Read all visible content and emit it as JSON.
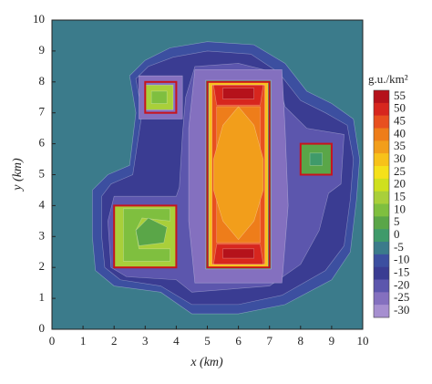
{
  "chart_data": {
    "type": "contour",
    "x_label": "x (km)",
    "y_label": "y (km)",
    "colorbar_title": "g.u./km²",
    "xlim": [
      0,
      10
    ],
    "ylim": [
      0,
      10
    ],
    "xticks": [
      0,
      1,
      2,
      3,
      4,
      5,
      6,
      7,
      8,
      9,
      10
    ],
    "yticks": [
      0,
      1,
      2,
      3,
      4,
      5,
      6,
      7,
      8,
      9,
      10
    ],
    "background_level": -5,
    "levels": [
      55,
      50,
      45,
      40,
      35,
      30,
      25,
      20,
      15,
      10,
      5,
      0,
      -5,
      -10,
      -15,
      -20,
      -25,
      -30
    ],
    "colors": [
      "#b5121b",
      "#d7261e",
      "#e8501f",
      "#ee7d1a",
      "#f29e1b",
      "#f7c21a",
      "#f5e11a",
      "#cfe01e",
      "#a9cf3a",
      "#7fbf3f",
      "#5aa648",
      "#3f9a6a",
      "#3b7b8b",
      "#3c4fa0",
      "#3a3c92",
      "#5c56ad",
      "#8470bf",
      "#a68fd0"
    ],
    "box_color": "#c8141c",
    "contours": [
      {
        "level": -10,
        "x": [
          4.5,
          6,
          7.5,
          9,
          9.6,
          9.8,
          9.9,
          9.7,
          9,
          8.2,
          7.5,
          6.5,
          5,
          3.8,
          3,
          2.5,
          2.7,
          2.5,
          1.8,
          1.3,
          1.3,
          1.4,
          2,
          3.5
        ],
        "y": [
          0.5,
          0.5,
          0.8,
          1.6,
          2.5,
          4.2,
          5.5,
          6.8,
          7.3,
          7.7,
          8.6,
          9.2,
          9.3,
          9.1,
          8.7,
          8.2,
          7,
          5.3,
          5,
          4.5,
          3,
          1.9,
          1.4,
          1.2
        ]
      },
      {
        "level": -15,
        "x": [
          4.5,
          6,
          7.4,
          8.8,
          9.4,
          9.6,
          9.7,
          9.5,
          8.8,
          8,
          7.3,
          6.4,
          5,
          3.9,
          3.1,
          2.7,
          2.9,
          2.6,
          1.9,
          1.6,
          1.6,
          1.7,
          2.2,
          3.5
        ],
        "y": [
          0.8,
          0.8,
          1.1,
          1.9,
          2.7,
          4.2,
          5.5,
          6.6,
          7,
          7.4,
          8.3,
          8.9,
          9,
          8.8,
          8.5,
          8.1,
          7,
          5,
          4.7,
          4.3,
          3,
          2,
          1.6,
          1.4
        ]
      },
      {
        "level": -20,
        "x": [
          4.5,
          7,
          8,
          8.6,
          8.9,
          9.3,
          9.4,
          8.2,
          7.5,
          7.2,
          6,
          4.6,
          4.3,
          4.2,
          4.1,
          4,
          2,
          1.8,
          1.9,
          2.4,
          4
        ],
        "y": [
          1.2,
          1.4,
          2.1,
          3.2,
          4.4,
          4.7,
          6.3,
          6.5,
          7.2,
          8.3,
          8.6,
          8.5,
          7.5,
          6.3,
          4.6,
          4.3,
          4.3,
          3.5,
          2,
          1.7,
          1.6
        ]
      },
      {
        "level": -25,
        "x": [
          4.6,
          7.4,
          7.6,
          7.5,
          7.4,
          4.6,
          4.4,
          4.4
        ],
        "y": [
          1.5,
          1.5,
          4,
          6.5,
          8.4,
          8.4,
          6.5,
          3.5
        ]
      },
      {
        "level": -25,
        "x": [
          2.8,
          4.2,
          4.2,
          2.8
        ],
        "y": [
          6.8,
          6.8,
          8.2,
          8.2
        ]
      },
      {
        "level": 0,
        "x": [
          4.95,
          7.05,
          7.05,
          4.95
        ],
        "y": [
          1.95,
          1.95,
          8.05,
          8.05
        ]
      },
      {
        "level": 30,
        "x": [
          5.05,
          6.95,
          6.95,
          5.05
        ],
        "y": [
          2,
          2,
          8,
          8
        ]
      },
      {
        "level": 45,
        "x": [
          5.15,
          6.85,
          6.85,
          5.15
        ],
        "y": [
          2.1,
          2.1,
          7.9,
          7.9
        ]
      },
      {
        "level": 40,
        "x": [
          5.3,
          6.7,
          6.7,
          5.3
        ],
        "y": [
          2.8,
          2.8,
          7.2,
          7.2
        ]
      },
      {
        "level": 35,
        "x": [
          6,
          6.5,
          6.8,
          6.8,
          6.5,
          6,
          5.5,
          5.2,
          5.2,
          5.5
        ],
        "y": [
          2.9,
          3.5,
          4.5,
          5.5,
          6.6,
          7.2,
          6.6,
          5.5,
          4.5,
          3.5
        ]
      },
      {
        "level": 50,
        "x": [
          5.3,
          6.7,
          6.8,
          5.2
        ],
        "y": [
          7.25,
          7.25,
          7.9,
          7.9
        ]
      },
      {
        "level": 55,
        "x": [
          5.5,
          6.5,
          6.5,
          5.5
        ],
        "y": [
          7.45,
          7.45,
          7.8,
          7.8
        ]
      },
      {
        "level": 50,
        "x": [
          5.2,
          6.8,
          6.7,
          5.3
        ],
        "y": [
          2.1,
          2.1,
          2.75,
          2.75
        ]
      },
      {
        "level": 55,
        "x": [
          5.5,
          6.5,
          6.5,
          5.5
        ],
        "y": [
          2.3,
          2.3,
          2.6,
          2.6
        ]
      },
      {
        "level": 15,
        "x": [
          2,
          4,
          4,
          2
        ],
        "y": [
          2,
          2,
          4,
          4
        ]
      },
      {
        "level": 10,
        "x": [
          2.3,
          3.8,
          3.8,
          2.8,
          2.7,
          2.9,
          3.8,
          3.8,
          2.3
        ],
        "y": [
          2.2,
          2.2,
          2.6,
          2.6,
          3.2,
          3.6,
          3.5,
          3.9,
          3.9
        ]
      },
      {
        "level": 5,
        "x": [
          2.8,
          3.6,
          3.7,
          3.1,
          2.7
        ],
        "y": [
          2.7,
          2.8,
          3.3,
          3.6,
          3.2
        ]
      },
      {
        "level": 15,
        "x": [
          3,
          3.9,
          3.9,
          3
        ],
        "y": [
          7.1,
          7.1,
          7.9,
          7.9
        ]
      },
      {
        "level": 10,
        "x": [
          3.2,
          3.7,
          3.7,
          3.2
        ],
        "y": [
          7.3,
          7.3,
          7.7,
          7.7
        ]
      },
      {
        "level": 5,
        "x": [
          8,
          9,
          9,
          8
        ],
        "y": [
          5,
          5,
          6,
          6
        ]
      },
      {
        "level": 0,
        "x": [
          8.3,
          8.7,
          8.7,
          8.3
        ],
        "y": [
          5.3,
          5.3,
          5.7,
          5.7
        ]
      }
    ],
    "boxes": [
      {
        "x": [
          2,
          4
        ],
        "y": [
          2,
          4
        ]
      },
      {
        "x": [
          3,
          4
        ],
        "y": [
          7,
          8
        ]
      },
      {
        "x": [
          5,
          7
        ],
        "y": [
          2,
          8
        ]
      },
      {
        "x": [
          8,
          9
        ],
        "y": [
          5,
          6
        ]
      }
    ]
  }
}
